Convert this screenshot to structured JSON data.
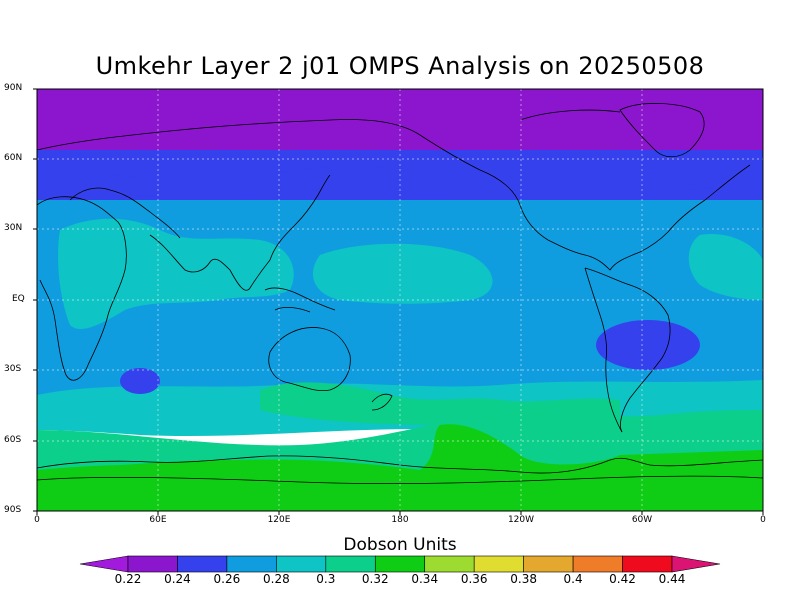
{
  "title": "Umkehr Layer 2 j01 OMPS Analysis on 20250508",
  "map": {
    "lat_labels": [
      "90N",
      "60N",
      "30N",
      "EQ",
      "30S",
      "60S",
      "90S"
    ],
    "lon_labels": [
      "0",
      "60E",
      "120E",
      "180",
      "120W",
      "60W",
      "0"
    ]
  },
  "colorbar": {
    "title": "Dobson Units",
    "levels": [
      "0.22",
      "0.24",
      "0.26",
      "0.28",
      "0.3",
      "0.32",
      "0.34",
      "0.36",
      "0.38",
      "0.4",
      "0.42",
      "0.44"
    ],
    "colors": [
      "#a21bdc",
      "#8c16ce",
      "#3541ed",
      "#109de0",
      "#0ec4c4",
      "#0ccf8c",
      "#0fcd14",
      "#9edb30",
      "#e0dc30",
      "#e5a82e",
      "#ee7c28",
      "#f00a1e",
      "#db1373"
    ]
  },
  "field_colors": {
    "purple_deep": "#8c16ce",
    "blue_dark": "#3541ed",
    "blue": "#109de0",
    "cyan": "#0ec4c4",
    "teal": "#0ccf8c",
    "green": "#0fcd14",
    "purple_edge": "#a21bdc"
  }
}
